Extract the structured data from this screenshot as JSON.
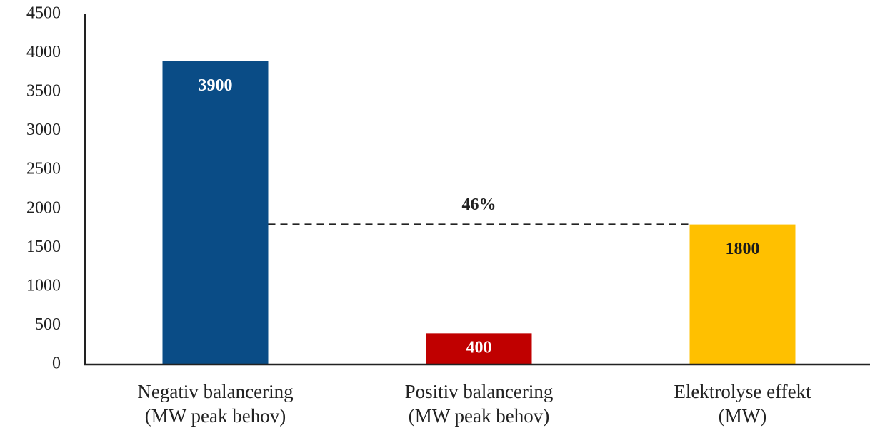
{
  "chart_data": {
    "type": "bar",
    "categories": [
      [
        "Negativ balancering",
        "(MW peak behov)"
      ],
      [
        "Positiv balancering",
        "(MW peak behov)"
      ],
      [
        "Elektrolyse effekt",
        "(MW)"
      ]
    ],
    "values": [
      3900,
      400,
      1800
    ],
    "colors": [
      "#0a4c86",
      "#c00000",
      "#ffc000"
    ],
    "label_colors": [
      "#ffffff",
      "#ffffff",
      "#1a1a1a"
    ],
    "ylim": [
      0,
      4500
    ],
    "yticks": [
      0,
      500,
      1000,
      1500,
      2000,
      2500,
      3000,
      3500,
      4000,
      4500
    ],
    "annotation": "46%",
    "grid": false
  }
}
